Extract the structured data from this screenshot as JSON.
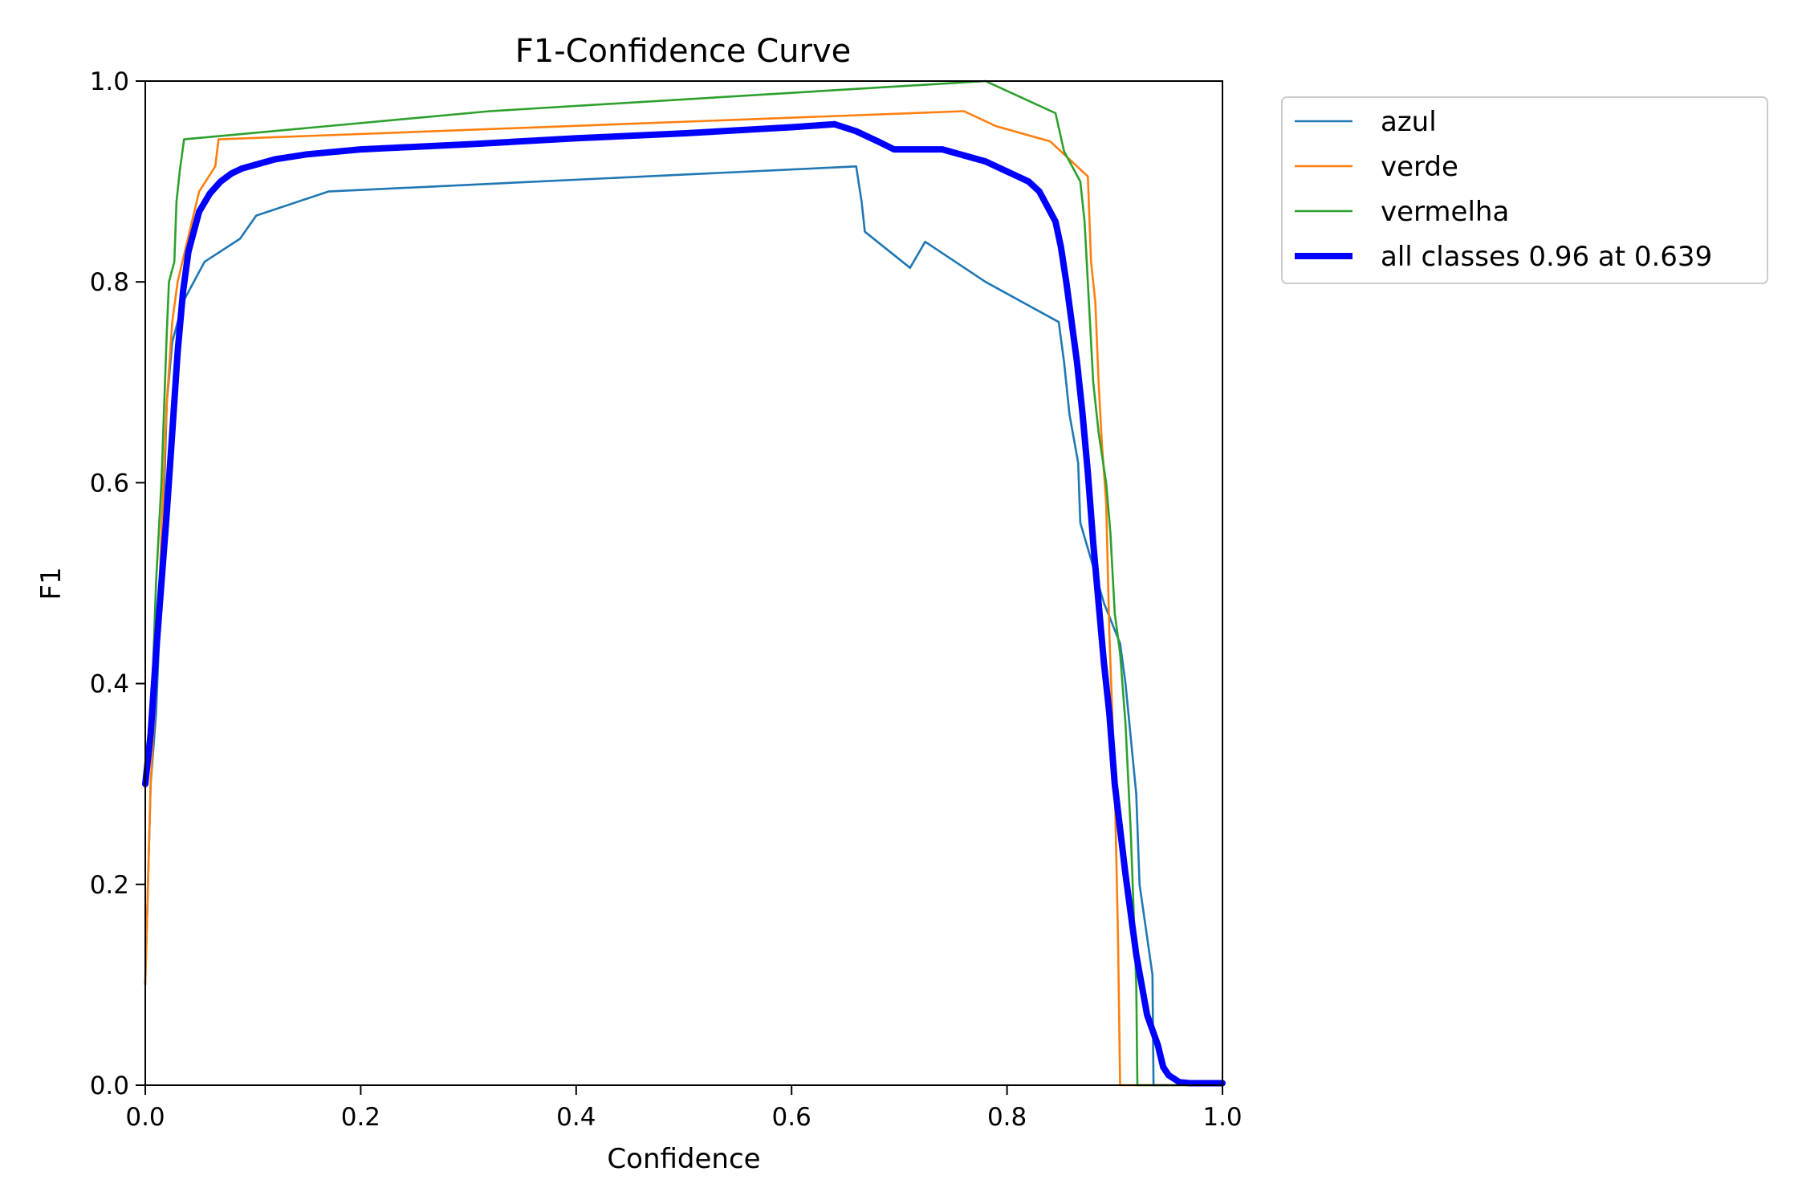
{
  "chart_data": {
    "type": "line",
    "title": "F1-Confidence Curve",
    "xlabel": "Confidence",
    "ylabel": "F1",
    "xlim": [
      0,
      1
    ],
    "ylim": [
      0,
      1
    ],
    "xticks": [
      "0.0",
      "0.2",
      "0.4",
      "0.6",
      "0.8",
      "1.0"
    ],
    "yticks": [
      "0.0",
      "0.2",
      "0.4",
      "0.6",
      "0.8",
      "1.0"
    ],
    "grid": false,
    "legend_position": "outside-top-right",
    "series": [
      {
        "name": "azul",
        "color": "#1f77b4",
        "style": "thin",
        "points": [
          [
            0,
            0.1
          ],
          [
            0.005,
            0.3
          ],
          [
            0.01,
            0.37
          ],
          [
            0.015,
            0.5
          ],
          [
            0.02,
            0.68
          ],
          [
            0.025,
            0.74
          ],
          [
            0.035,
            0.78
          ],
          [
            0.045,
            0.8
          ],
          [
            0.055,
            0.82
          ],
          [
            0.088,
            0.843
          ],
          [
            0.103,
            0.866
          ],
          [
            0.17,
            0.89
          ],
          [
            0.66,
            0.915
          ],
          [
            0.665,
            0.88
          ],
          [
            0.668,
            0.85
          ],
          [
            0.71,
            0.814
          ],
          [
            0.724,
            0.84
          ],
          [
            0.78,
            0.8
          ],
          [
            0.848,
            0.76
          ],
          [
            0.853,
            0.72
          ],
          [
            0.858,
            0.668
          ],
          [
            0.866,
            0.62
          ],
          [
            0.868,
            0.56
          ],
          [
            0.89,
            0.48
          ],
          [
            0.905,
            0.44
          ],
          [
            0.91,
            0.4
          ],
          [
            0.92,
            0.29
          ],
          [
            0.923,
            0.2
          ],
          [
            0.935,
            0.11
          ],
          [
            0.936,
            0.0
          ],
          [
            1.0,
            0.0
          ]
        ]
      },
      {
        "name": "verde",
        "color": "#ff7f0e",
        "style": "thin",
        "points": [
          [
            0,
            0.1
          ],
          [
            0.005,
            0.3
          ],
          [
            0.01,
            0.4
          ],
          [
            0.015,
            0.55
          ],
          [
            0.02,
            0.68
          ],
          [
            0.025,
            0.76
          ],
          [
            0.03,
            0.8
          ],
          [
            0.04,
            0.845
          ],
          [
            0.05,
            0.89
          ],
          [
            0.065,
            0.915
          ],
          [
            0.068,
            0.942
          ],
          [
            0.76,
            0.97
          ],
          [
            0.79,
            0.955
          ],
          [
            0.84,
            0.94
          ],
          [
            0.875,
            0.905
          ],
          [
            0.878,
            0.82
          ],
          [
            0.882,
            0.78
          ],
          [
            0.885,
            0.7
          ],
          [
            0.888,
            0.64
          ],
          [
            0.892,
            0.58
          ],
          [
            0.895,
            0.45
          ],
          [
            0.9,
            0.3
          ],
          [
            0.903,
            0.15
          ],
          [
            0.905,
            0.0
          ],
          [
            1.0,
            0.0
          ]
        ]
      },
      {
        "name": "vermelha",
        "color": "#2ca02c",
        "style": "thin",
        "points": [
          [
            0,
            0.3
          ],
          [
            0.005,
            0.35
          ],
          [
            0.01,
            0.5
          ],
          [
            0.015,
            0.6
          ],
          [
            0.02,
            0.75
          ],
          [
            0.022,
            0.8
          ],
          [
            0.027,
            0.82
          ],
          [
            0.029,
            0.88
          ],
          [
            0.032,
            0.91
          ],
          [
            0.036,
            0.942
          ],
          [
            0.32,
            0.97
          ],
          [
            0.78,
            1.0
          ],
          [
            0.845,
            0.968
          ],
          [
            0.853,
            0.93
          ],
          [
            0.868,
            0.9
          ],
          [
            0.872,
            0.86
          ],
          [
            0.876,
            0.78
          ],
          [
            0.88,
            0.7
          ],
          [
            0.885,
            0.65
          ],
          [
            0.892,
            0.6
          ],
          [
            0.896,
            0.55
          ],
          [
            0.9,
            0.47
          ],
          [
            0.905,
            0.43
          ],
          [
            0.91,
            0.36
          ],
          [
            0.915,
            0.25
          ],
          [
            0.92,
            0.1
          ],
          [
            0.921,
            0.0
          ],
          [
            1.0,
            0.0
          ]
        ]
      },
      {
        "name": "all classes 0.96 at 0.639",
        "color": "#0000ff",
        "style": "thick",
        "points": [
          [
            0,
            0.3
          ],
          [
            0.005,
            0.35
          ],
          [
            0.01,
            0.43
          ],
          [
            0.015,
            0.5
          ],
          [
            0.02,
            0.57
          ],
          [
            0.025,
            0.65
          ],
          [
            0.03,
            0.73
          ],
          [
            0.035,
            0.79
          ],
          [
            0.04,
            0.83
          ],
          [
            0.045,
            0.85
          ],
          [
            0.05,
            0.87
          ],
          [
            0.06,
            0.888
          ],
          [
            0.07,
            0.9
          ],
          [
            0.08,
            0.908
          ],
          [
            0.09,
            0.913
          ],
          [
            0.1,
            0.916
          ],
          [
            0.12,
            0.922
          ],
          [
            0.15,
            0.927
          ],
          [
            0.2,
            0.932
          ],
          [
            0.3,
            0.937
          ],
          [
            0.4,
            0.943
          ],
          [
            0.5,
            0.948
          ],
          [
            0.6,
            0.954
          ],
          [
            0.64,
            0.957
          ],
          [
            0.66,
            0.95
          ],
          [
            0.68,
            0.94
          ],
          [
            0.695,
            0.932
          ],
          [
            0.72,
            0.932
          ],
          [
            0.74,
            0.932
          ],
          [
            0.76,
            0.926
          ],
          [
            0.78,
            0.92
          ],
          [
            0.8,
            0.91
          ],
          [
            0.82,
            0.9
          ],
          [
            0.83,
            0.89
          ],
          [
            0.84,
            0.87
          ],
          [
            0.845,
            0.86
          ],
          [
            0.85,
            0.835
          ],
          [
            0.855,
            0.8
          ],
          [
            0.86,
            0.76
          ],
          [
            0.865,
            0.72
          ],
          [
            0.87,
            0.67
          ],
          [
            0.875,
            0.61
          ],
          [
            0.88,
            0.54
          ],
          [
            0.885,
            0.48
          ],
          [
            0.89,
            0.42
          ],
          [
            0.895,
            0.37
          ],
          [
            0.9,
            0.3
          ],
          [
            0.91,
            0.21
          ],
          [
            0.92,
            0.13
          ],
          [
            0.93,
            0.07
          ],
          [
            0.94,
            0.04
          ],
          [
            0.945,
            0.018
          ],
          [
            0.95,
            0.01
          ],
          [
            0.96,
            0.003
          ],
          [
            0.97,
            0.002
          ],
          [
            1.0,
            0.002
          ]
        ]
      }
    ]
  }
}
